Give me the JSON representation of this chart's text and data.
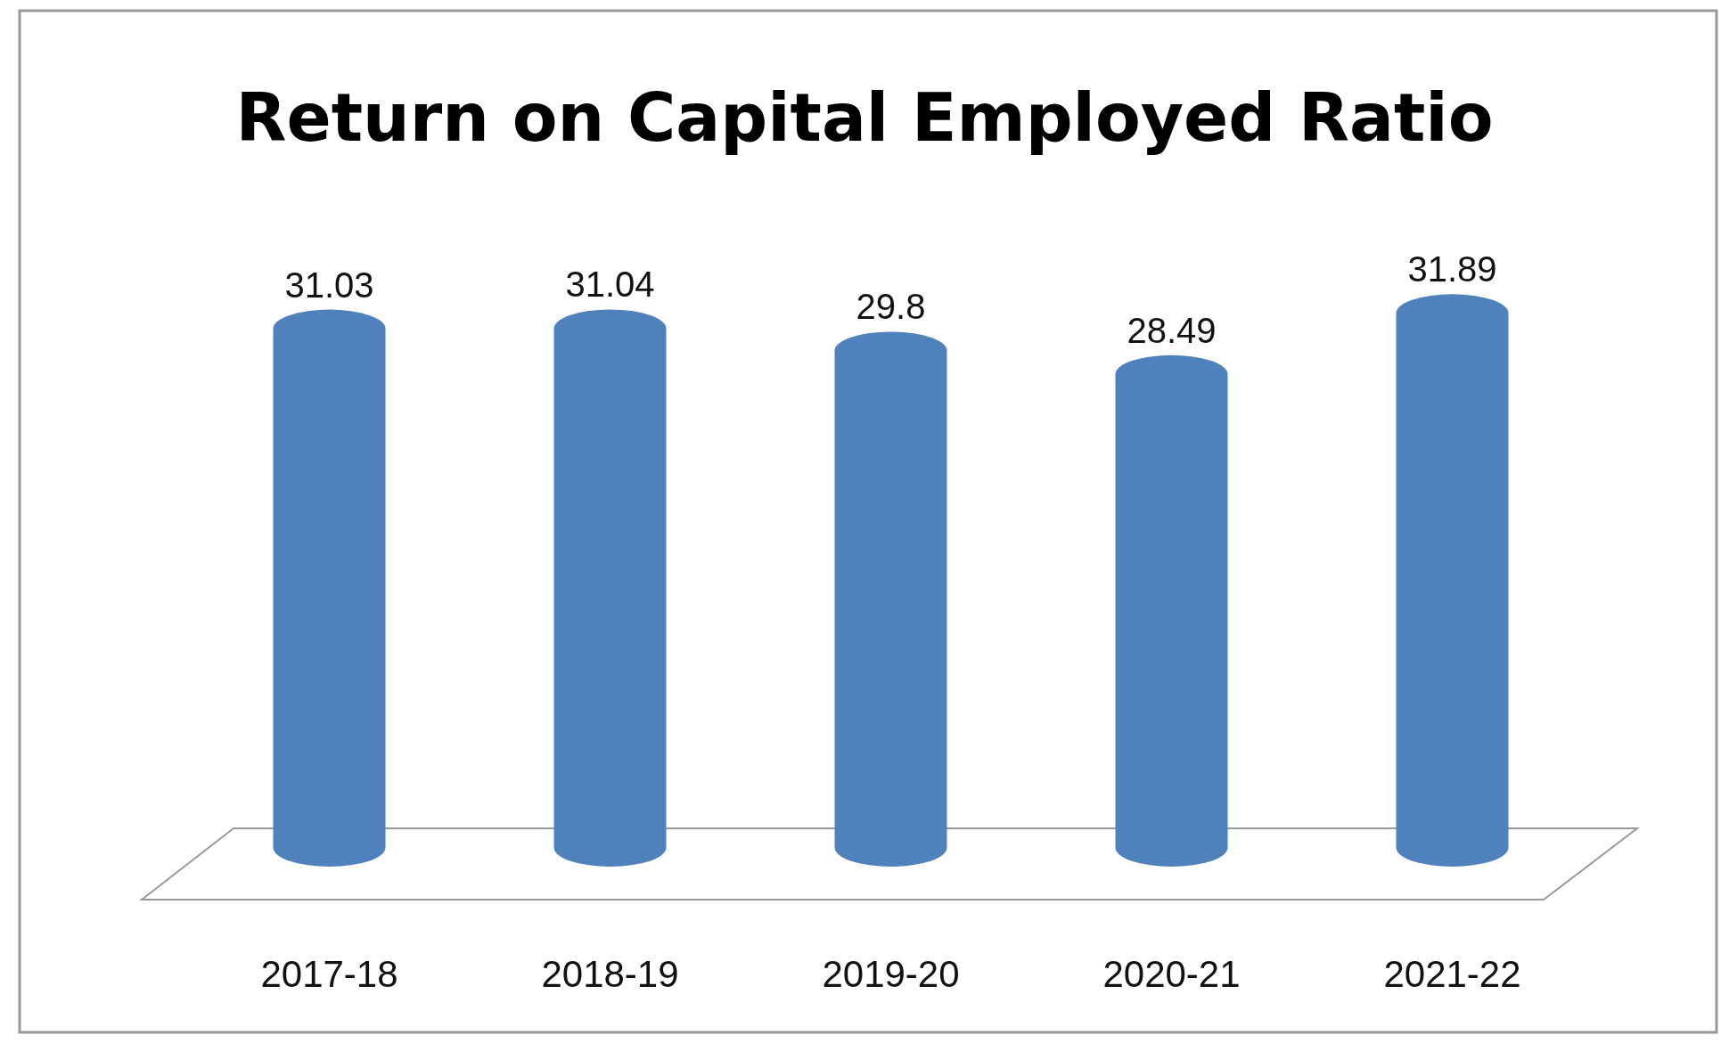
{
  "chart_data": {
    "type": "bar",
    "title": "Return on Capital Employed Ratio",
    "categories": [
      "2017-18",
      "2018-19",
      "2019-20",
      "2020-21",
      "2021-22"
    ],
    "values": [
      31.03,
      31.04,
      29.8,
      28.49,
      31.89
    ],
    "color": "#4f81bd",
    "data_labels": true
  }
}
